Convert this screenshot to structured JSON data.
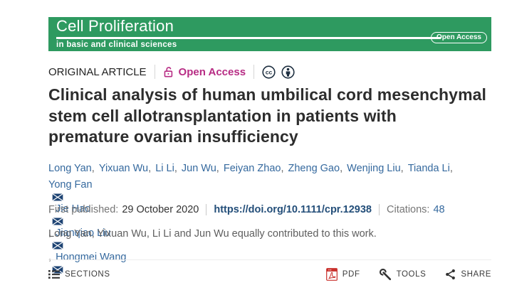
{
  "banner": {
    "journal_title": "Cell Proliferation",
    "journal_subtitle": "in basic and clinical sciences",
    "open_access_pill": "Open Access",
    "bg_color": "#2e9a60"
  },
  "article_meta": {
    "type_label": "ORIGINAL ARTICLE",
    "open_access_label": "Open Access",
    "open_access_color": "#b72c84"
  },
  "title": {
    "lines": [
      "Clinical analysis of human umbilical cord mesenchymal",
      "stem cell allotransplantation in patients with",
      "premature ovarian insufficiency"
    ]
  },
  "authors": {
    "line1": [
      {
        "name": "Long Yan",
        "email": false,
        "sep": ", "
      },
      {
        "name": "Yixuan Wu",
        "email": false,
        "sep": ", "
      },
      {
        "name": "Li Li",
        "email": false,
        "sep": ", "
      },
      {
        "name": "Jun Wu",
        "email": false,
        "sep": ", "
      },
      {
        "name": "Feiyan Zhao",
        "email": false,
        "sep": ", "
      },
      {
        "name": "Zheng Gao",
        "email": false,
        "sep": ", "
      },
      {
        "name": "Wenjing Liu",
        "email": false,
        "sep": ", "
      },
      {
        "name": "Tianda Li",
        "email": false,
        "sep": ","
      }
    ],
    "line2": [
      {
        "name": "Yong Fan",
        "email": true,
        "sep": ", "
      },
      {
        "name": "Jie Hao",
        "email": true,
        "sep": ", "
      },
      {
        "name": "Jianqiao Liu",
        "email": true,
        "sep": ", "
      },
      {
        "name": "Hongmei Wang",
        "email": true,
        "sep": ""
      }
    ],
    "link_color": "#35699e"
  },
  "publication": {
    "first_published_label": "First published:",
    "first_published_date": "29 October 2020",
    "doi": "https://doi.org/10.1111/cpr.12938",
    "citations_label": "Citations:",
    "citations_count": "48"
  },
  "contribution_note": "Long Yan, Yixuan Wu, Li Li and Jun Wu equally contributed to this work.",
  "toolbar": {
    "sections_label": "SECTIONS",
    "pdf_label": "PDF",
    "tools_label": "TOOLS",
    "share_label": "SHARE"
  }
}
